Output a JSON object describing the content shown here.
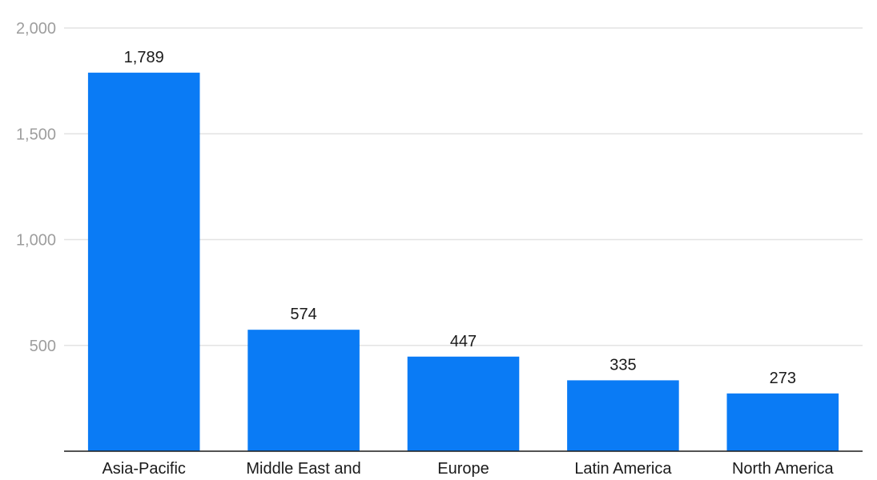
{
  "chart_data": {
    "type": "bar",
    "categories": [
      "Asia-Pacific",
      "Middle East and",
      "Europe",
      "Latin America",
      "North America"
    ],
    "values": [
      1789,
      574,
      447,
      335,
      273
    ],
    "data_labels": [
      "1,789",
      "574",
      "447",
      "335",
      "273"
    ],
    "yticks": [
      500,
      1000,
      1500,
      2000
    ],
    "ytick_labels": [
      "500",
      "1,000",
      "1,500",
      "2,000"
    ],
    "ylim": [
      0,
      2000
    ],
    "grid": true,
    "legend": "none",
    "colors": {
      "bar": "#0a7bf5",
      "grid": "#e3e3e3",
      "axis": "#1a1a1a",
      "tick_text": "#9e9e9e"
    }
  }
}
